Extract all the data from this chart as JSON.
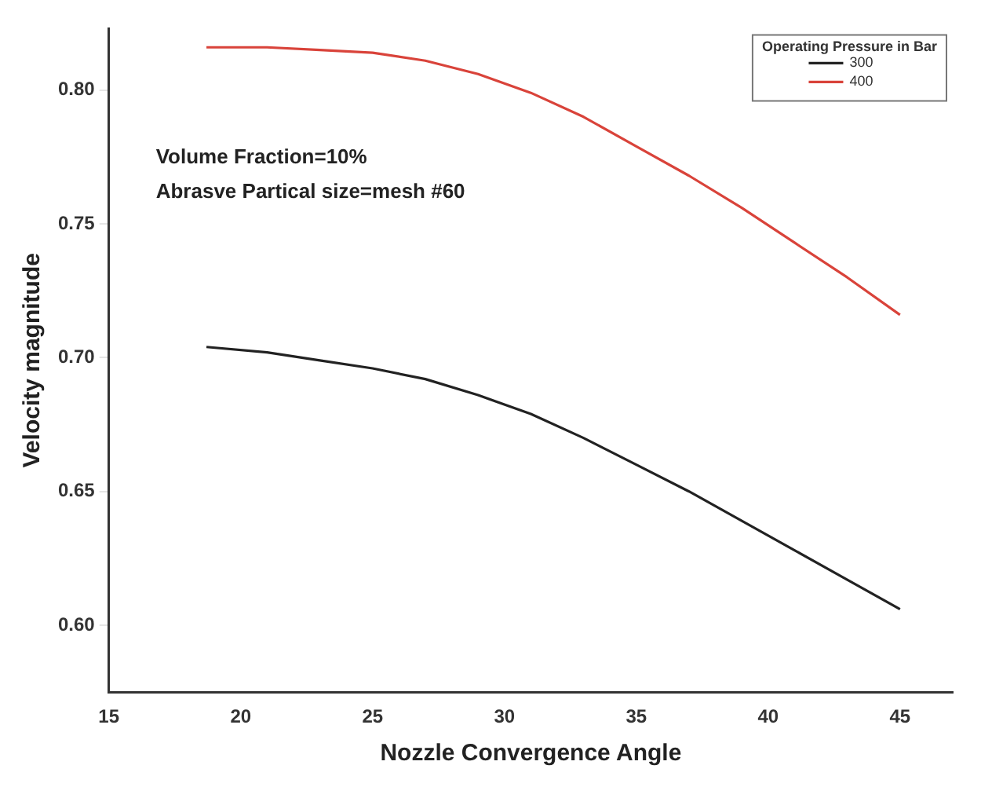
{
  "chart_data": {
    "type": "line",
    "xlabel": "Nozzle Convergence Angle",
    "ylabel": "Velocity magnitude",
    "legend_title": "Operating Pressure in Bar",
    "xlim": [
      15,
      47
    ],
    "xticks": [
      15,
      20,
      25,
      30,
      35,
      40,
      45
    ],
    "ylim": [
      0.575,
      0.823
    ],
    "yticks": [
      {
        "value": 0.6,
        "label": "0.60"
      },
      0.65,
      {
        "value": 0.7,
        "label": "0.70"
      },
      0.75,
      {
        "value": 0.8,
        "label": "0.80"
      }
    ],
    "grid": false,
    "legend": "top right",
    "marker": "none",
    "line_style": "solid",
    "annotations": [
      "Volume Fraction=10%",
      "Abrasve Partical size=mesh #60"
    ],
    "series": [
      {
        "name": "300",
        "color": "#222222",
        "x": [
          18.7,
          21,
          23,
          25,
          27,
          29,
          31,
          33,
          35,
          37,
          39,
          41,
          43,
          45
        ],
        "values": [
          0.704,
          0.702,
          0.699,
          0.696,
          0.692,
          0.686,
          0.679,
          0.67,
          0.66,
          0.65,
          0.639,
          0.628,
          0.617,
          0.606
        ]
      },
      {
        "name": "400",
        "color": "#d9433a",
        "x": [
          18.7,
          21,
          23,
          25,
          27,
          29,
          31,
          33,
          35,
          37,
          39,
          41,
          43,
          45
        ],
        "values": [
          0.816,
          0.816,
          0.815,
          0.814,
          0.811,
          0.806,
          0.799,
          0.79,
          0.779,
          0.768,
          0.756,
          0.743,
          0.73,
          0.716
        ]
      }
    ]
  }
}
